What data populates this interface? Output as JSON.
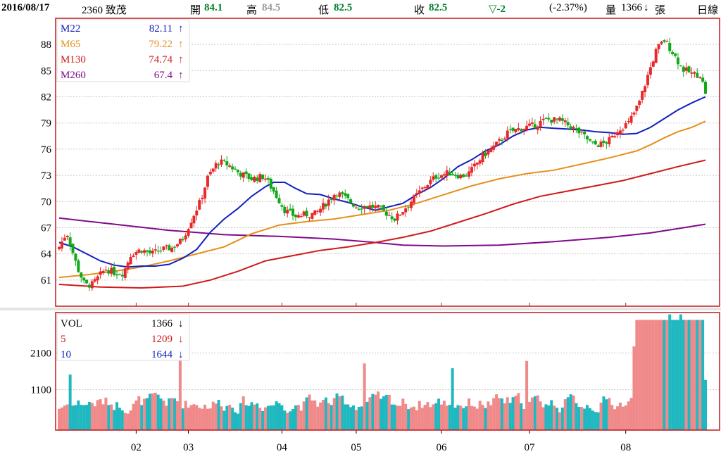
{
  "header": {
    "date": "2016/08/17",
    "stock": "2360 致茂",
    "open_label": "開",
    "open": "84.1",
    "high_label": "高",
    "high": "84.5",
    "low_label": "低",
    "low": "82.5",
    "close_label": "收",
    "close": "82.5",
    "change": "▽-2",
    "change_pct": "(-2.37%)",
    "volume_label": "量",
    "volume": "1366",
    "volume_arrow": "↓",
    "volume_unit": "張",
    "period": "日線"
  },
  "colors": {
    "up": "#e8282a",
    "down": "#12a818",
    "ma22": "#1020c0",
    "ma65": "#e6901a",
    "ma130": "#d01a1a",
    "ma260": "#800a8a",
    "vol_up": "#f08a8a",
    "vol_down": "#20b8c0",
    "frame": "#c0181e"
  },
  "chart_data": [
    {
      "type": "candlestick",
      "ylim": [
        58,
        91
      ],
      "yticks": [
        61,
        64,
        67,
        70,
        73,
        76,
        79,
        82,
        85,
        88
      ],
      "x_months": [
        "02",
        "03",
        "04",
        "05",
        "06",
        "07",
        "08"
      ],
      "grid": true,
      "legend": [
        {
          "name": "M22",
          "value": "82.11",
          "arrow": "↑"
        },
        {
          "name": "M65",
          "value": "79.22",
          "arrow": "↑"
        },
        {
          "name": "M130",
          "value": "74.74",
          "arrow": "↑"
        },
        {
          "name": "M260",
          "value": "67.4",
          "arrow": "↑"
        }
      ],
      "ma22": [
        [
          0,
          65.3
        ],
        [
          5,
          64.8
        ],
        [
          10,
          64.0
        ],
        [
          15,
          63.2
        ],
        [
          20,
          62.7
        ],
        [
          25,
          62.5
        ],
        [
          30,
          62.6
        ],
        [
          35,
          62.6
        ],
        [
          40,
          62.8
        ],
        [
          45,
          63.5
        ],
        [
          50,
          64.5
        ],
        [
          55,
          66.5
        ],
        [
          60,
          68.0
        ],
        [
          65,
          69.2
        ],
        [
          70,
          70.6
        ],
        [
          75,
          71.7
        ],
        [
          78,
          72.2
        ],
        [
          82,
          72.2
        ],
        [
          86,
          71.5
        ],
        [
          90,
          70.9
        ],
        [
          95,
          70.8
        ],
        [
          100,
          70.3
        ],
        [
          105,
          69.9
        ],
        [
          110,
          69.4
        ],
        [
          115,
          69.0
        ],
        [
          120,
          69.4
        ],
        [
          125,
          69.8
        ],
        [
          130,
          70.8
        ],
        [
          135,
          71.6
        ],
        [
          140,
          72.7
        ],
        [
          145,
          74.0
        ],
        [
          150,
          74.8
        ],
        [
          155,
          75.8
        ],
        [
          160,
          76.5
        ],
        [
          165,
          77.5
        ],
        [
          170,
          78.2
        ],
        [
          175,
          78.5
        ],
        [
          180,
          78.4
        ],
        [
          185,
          78.3
        ],
        [
          190,
          78.2
        ],
        [
          195,
          78.0
        ],
        [
          200,
          77.9
        ],
        [
          205,
          77.7
        ],
        [
          210,
          77.8
        ],
        [
          215,
          78.5
        ],
        [
          220,
          79.5
        ],
        [
          225,
          80.5
        ],
        [
          230,
          81.3
        ],
        [
          235,
          82.0
        ]
      ],
      "ma65": [
        [
          0,
          61.3
        ],
        [
          10,
          61.6
        ],
        [
          20,
          62.0
        ],
        [
          30,
          62.5
        ],
        [
          40,
          63.2
        ],
        [
          50,
          64.0
        ],
        [
          60,
          64.8
        ],
        [
          70,
          66.3
        ],
        [
          80,
          67.3
        ],
        [
          90,
          67.7
        ],
        [
          100,
          68.0
        ],
        [
          110,
          68.5
        ],
        [
          120,
          69.0
        ],
        [
          130,
          69.8
        ],
        [
          140,
          70.8
        ],
        [
          150,
          71.8
        ],
        [
          160,
          72.6
        ],
        [
          170,
          73.2
        ],
        [
          180,
          73.6
        ],
        [
          190,
          74.3
        ],
        [
          200,
          75.0
        ],
        [
          210,
          75.8
        ],
        [
          215,
          76.5
        ],
        [
          220,
          77.3
        ],
        [
          225,
          78.0
        ],
        [
          230,
          78.5
        ],
        [
          235,
          79.2
        ]
      ],
      "ma130": [
        [
          0,
          60.5
        ],
        [
          15,
          60.2
        ],
        [
          30,
          60.1
        ],
        [
          45,
          60.3
        ],
        [
          55,
          61.0
        ],
        [
          65,
          62.0
        ],
        [
          75,
          63.2
        ],
        [
          85,
          63.8
        ],
        [
          95,
          64.4
        ],
        [
          105,
          64.8
        ],
        [
          115,
          65.3
        ],
        [
          125,
          65.9
        ],
        [
          135,
          66.6
        ],
        [
          145,
          67.6
        ],
        [
          155,
          68.6
        ],
        [
          165,
          69.7
        ],
        [
          175,
          70.6
        ],
        [
          185,
          71.2
        ],
        [
          195,
          71.8
        ],
        [
          205,
          72.4
        ],
        [
          215,
          73.2
        ],
        [
          225,
          74.0
        ],
        [
          235,
          74.74
        ]
      ],
      "ma260": [
        [
          0,
          68.1
        ],
        [
          20,
          67.4
        ],
        [
          40,
          66.7
        ],
        [
          60,
          66.2
        ],
        [
          80,
          66.0
        ],
        [
          100,
          65.7
        ],
        [
          115,
          65.3
        ],
        [
          125,
          65.0
        ],
        [
          140,
          64.9
        ],
        [
          160,
          65.0
        ],
        [
          180,
          65.4
        ],
        [
          200,
          65.9
        ],
        [
          215,
          66.4
        ],
        [
          225,
          66.9
        ],
        [
          235,
          67.4
        ]
      ]
    },
    {
      "type": "bar",
      "name": "volume",
      "ylim": [
        0,
        3200
      ],
      "yticks": [
        1100,
        2100
      ],
      "legend": [
        {
          "name": "VOL",
          "value": "1366",
          "arrow": "↓"
        },
        {
          "name": "5",
          "value": "1209",
          "arrow": "↓"
        },
        {
          "name": "10",
          "value": "1644",
          "arrow": "↓"
        }
      ]
    }
  ]
}
